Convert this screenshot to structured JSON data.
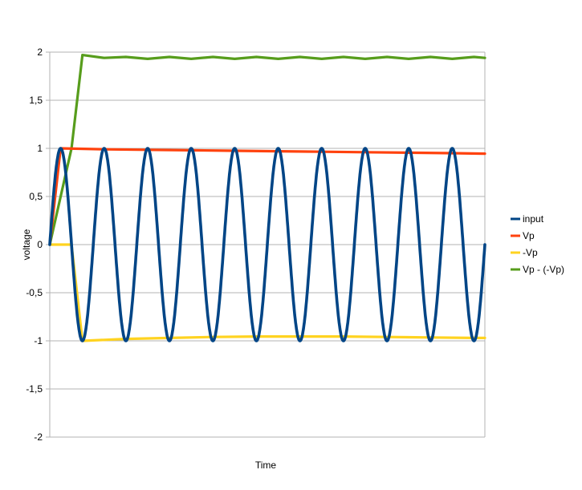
{
  "chart_data": {
    "type": "line",
    "title": "",
    "xlabel": "Time",
    "ylabel": "voltage",
    "ylim": [
      -2,
      2
    ],
    "yticks": [
      -2,
      -1.5,
      -1,
      -0.5,
      0,
      0.5,
      1,
      1.5,
      2
    ],
    "ytick_labels": [
      "-2",
      "-1,5",
      "-1",
      "-0,5",
      "0",
      "0,5",
      "1",
      "1,5",
      "2"
    ],
    "x_categories": 10,
    "grid": true,
    "legend_position": "right",
    "series": [
      {
        "name": "input",
        "color": "#004586",
        "description": "sine wave, amplitude 1, period ~1 category",
        "values": [
          [
            0,
            0
          ],
          [
            0.125,
            0.71
          ],
          [
            0.25,
            1
          ],
          [
            0.375,
            0.71
          ],
          [
            0.5,
            0
          ],
          [
            0.625,
            -0.71
          ],
          [
            0.75,
            -1
          ],
          [
            0.875,
            -0.71
          ],
          [
            1,
            0
          ],
          [
            1.25,
            1
          ],
          [
            1.5,
            0
          ],
          [
            1.75,
            -1
          ],
          [
            2,
            0
          ],
          [
            2.25,
            1
          ],
          [
            2.5,
            0
          ],
          [
            2.75,
            -1
          ],
          [
            3,
            0
          ],
          [
            3.25,
            1
          ],
          [
            3.5,
            0
          ],
          [
            3.75,
            -1
          ],
          [
            4,
            0
          ],
          [
            4.25,
            1
          ],
          [
            4.5,
            0
          ],
          [
            4.75,
            -1
          ],
          [
            5,
            0
          ],
          [
            5.25,
            1
          ],
          [
            5.5,
            0
          ],
          [
            5.75,
            -1
          ],
          [
            6,
            0
          ],
          [
            6.25,
            1
          ],
          [
            6.5,
            0
          ],
          [
            6.75,
            -1
          ],
          [
            7,
            0
          ],
          [
            7.25,
            1
          ],
          [
            7.5,
            0
          ],
          [
            7.75,
            -1
          ],
          [
            8,
            0
          ],
          [
            8.25,
            1
          ],
          [
            8.5,
            0
          ],
          [
            8.75,
            -1
          ],
          [
            9,
            0
          ],
          [
            9.25,
            1
          ],
          [
            9.5,
            0
          ],
          [
            9.75,
            -1
          ],
          [
            10,
            0
          ]
        ]
      },
      {
        "name": "Vp",
        "color": "#ff420e",
        "values": [
          [
            0,
            0
          ],
          [
            0.25,
            1
          ],
          [
            1.25,
            0.99
          ],
          [
            2.25,
            0.985
          ],
          [
            3.25,
            0.98
          ],
          [
            4.25,
            0.975
          ],
          [
            5.25,
            0.97
          ],
          [
            6.25,
            0.965
          ],
          [
            7.25,
            0.96
          ],
          [
            8.25,
            0.955
          ],
          [
            9.25,
            0.95
          ],
          [
            10,
            0.945
          ]
        ]
      },
      {
        "name": "-Vp",
        "color": "#ffd320",
        "values": [
          [
            0,
            0
          ],
          [
            0.5,
            0
          ],
          [
            0.75,
            -1
          ],
          [
            1.75,
            -0.98
          ],
          [
            2.75,
            -0.97
          ],
          [
            3.75,
            -0.96
          ],
          [
            4.75,
            -0.955
          ],
          [
            5.75,
            -0.955
          ],
          [
            6.75,
            -0.955
          ],
          [
            7.75,
            -0.96
          ],
          [
            8.75,
            -0.965
          ],
          [
            9.75,
            -0.97
          ],
          [
            10,
            -0.97
          ]
        ]
      },
      {
        "name": "Vp - (-Vp)",
        "color": "#579d1c",
        "values": [
          [
            0,
            0
          ],
          [
            0.5,
            1
          ],
          [
            0.75,
            1.97
          ],
          [
            1.25,
            1.94
          ],
          [
            1.75,
            1.95
          ],
          [
            2.25,
            1.93
          ],
          [
            2.75,
            1.95
          ],
          [
            3.25,
            1.93
          ],
          [
            3.75,
            1.95
          ],
          [
            4.25,
            1.93
          ],
          [
            4.75,
            1.95
          ],
          [
            5.25,
            1.93
          ],
          [
            5.75,
            1.95
          ],
          [
            6.25,
            1.93
          ],
          [
            6.75,
            1.95
          ],
          [
            7.25,
            1.93
          ],
          [
            7.75,
            1.95
          ],
          [
            8.25,
            1.93
          ],
          [
            8.75,
            1.95
          ],
          [
            9.25,
            1.93
          ],
          [
            9.75,
            1.95
          ],
          [
            10,
            1.94
          ]
        ]
      }
    ]
  }
}
